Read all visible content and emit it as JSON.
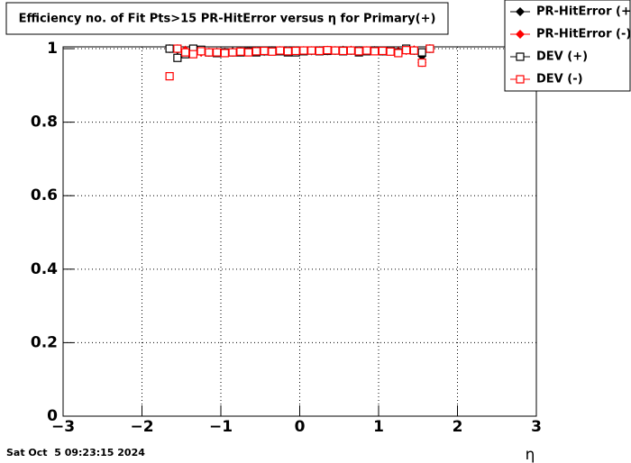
{
  "chart_data": {
    "type": "scatter",
    "title": "Efficiency no. of Fit Pts>15 PR-HitError versus η for Primary(+)",
    "x_label": "η",
    "timestamp": "Sat Oct  5 09:23:15 2024",
    "xlim": [
      -3,
      3
    ],
    "ylim": [
      0,
      1.005
    ],
    "xticks": [
      {
        "value": -3,
        "label": "−3"
      },
      {
        "value": -2,
        "label": "−2"
      },
      {
        "value": -1,
        "label": "−1"
      },
      0,
      1,
      2,
      3
    ],
    "yticks": [
      0,
      0.2,
      0.4,
      0.6,
      0.8,
      1
    ],
    "grid": true,
    "legend": "top-right",
    "x": [
      -1.65,
      -1.55,
      -1.45,
      -1.35,
      -1.25,
      -1.15,
      -1.05,
      -0.95,
      -0.85,
      -0.75,
      -0.65,
      -0.55,
      -0.45,
      -0.35,
      -0.25,
      -0.15,
      -0.05,
      0.05,
      0.15,
      0.25,
      0.35,
      0.45,
      0.55,
      0.65,
      0.75,
      0.85,
      0.95,
      1.05,
      1.15,
      1.25,
      1.35,
      1.45,
      1.55,
      1.65
    ],
    "series": [
      {
        "name": "PR-HitError (+)",
        "color": "#000000",
        "marker": "diamond",
        "values": [
          1.0,
          0.997,
          0.995,
          0.99,
          0.993,
          0.99,
          0.991,
          0.99,
          0.992,
          0.991,
          0.993,
          0.992,
          0.993,
          0.994,
          0.995,
          0.993,
          0.994,
          0.995,
          0.994,
          0.995,
          0.994,
          0.995,
          0.996,
          0.995,
          0.995,
          0.994,
          0.995,
          0.994,
          0.993,
          0.992,
          0.996,
          0.995,
          0.98,
          1.0
        ]
      },
      {
        "name": "PR-HitError (-)",
        "color": "#ff0000",
        "marker": "diamond",
        "values": [
          1.0,
          1.0,
          0.996,
          0.992,
          0.99,
          0.991,
          0.99,
          0.991,
          0.99,
          0.992,
          0.993,
          0.993,
          0.992,
          0.995,
          0.994,
          0.994,
          0.995,
          0.994,
          0.995,
          0.995,
          0.996,
          0.995,
          0.995,
          0.996,
          0.994,
          0.995,
          0.994,
          0.993,
          0.994,
          0.993,
          0.995,
          0.997,
          0.962,
          1.0
        ]
      },
      {
        "name": "DEV (+)",
        "color": "#000000",
        "marker": "square-open",
        "values": [
          1.0,
          0.975,
          0.985,
          1.0,
          0.997,
          0.99,
          0.988,
          0.99,
          0.99,
          0.99,
          0.992,
          0.99,
          0.993,
          0.995,
          0.993,
          0.99,
          0.99,
          0.993,
          0.995,
          0.993,
          0.994,
          0.995,
          0.993,
          0.995,
          0.99,
          0.993,
          0.995,
          0.993,
          0.995,
          0.99,
          1.0,
          0.995,
          0.99,
          1.0
        ]
      },
      {
        "name": "DEV (-)",
        "color": "#ff0000",
        "marker": "square-open",
        "values": [
          0.925,
          1.0,
          0.99,
          0.985,
          0.993,
          0.99,
          0.99,
          0.988,
          0.99,
          0.992,
          0.99,
          0.993,
          0.994,
          0.992,
          0.995,
          0.993,
          0.994,
          0.995,
          0.995,
          0.994,
          0.996,
          0.995,
          0.994,
          0.995,
          0.993,
          0.995,
          0.993,
          0.994,
          0.992,
          0.988,
          0.996,
          0.995,
          0.962,
          1.0
        ]
      }
    ]
  }
}
